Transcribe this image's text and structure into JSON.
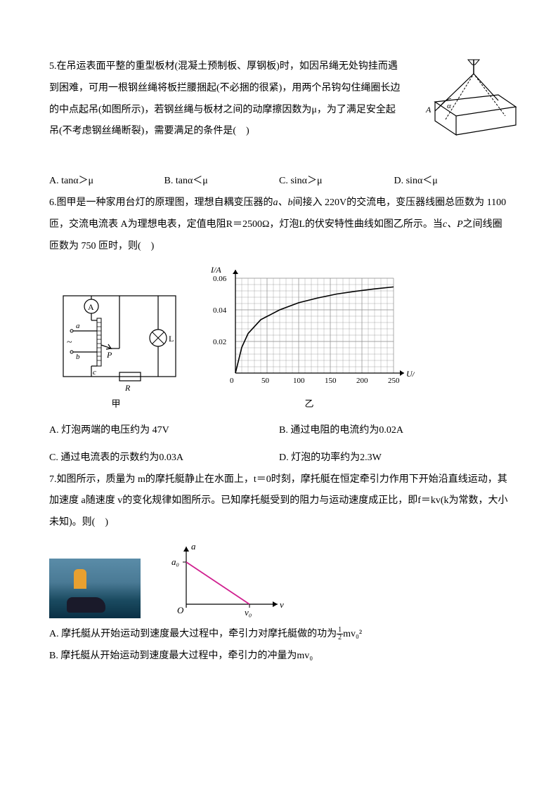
{
  "q5": {
    "text": "5.在吊运表面平整的重型板材(混凝土预制板、厚钢板)时，如因吊绳无处钩挂而遇到困难，可用一根钢丝绳将板拦腰捆起(不必捆的很紧)，用两个吊钩勾住绳圈长边的中点起吊(如图所示)，若钢丝绳与板材之间的动摩擦因数为μ，为了满足安全起吊(不考虑钢丝绳断裂)，需要满足的条件是(　)",
    "options": {
      "a": "A. tanα＞μ",
      "b": "B. tanα＜μ",
      "c": "C. sinα＞μ",
      "d": "D. sinα＜μ"
    },
    "diagram": {
      "label_A": "A",
      "label_alpha": "α"
    }
  },
  "q6": {
    "text_before": "6.图甲是一种家用台灯的原理图，理想自耦变压器的",
    "text_ab": "a、b",
    "text_mid1": "间接入 220V的交流电，变压器线圈总匝数为 1100 匝，交流电流表 A为理想电表，定值电阻R＝2500Ω，灯泡L的伏安特性曲线如图乙所示。当",
    "text_cp": "c、P",
    "text_end": "之间线圈匝数为 750 匝时，则(　)",
    "options": {
      "a": "A. 灯泡两端的电压约为 47V",
      "b": "B. 通过电阻的电流约为0.02A",
      "c": "C. 通过电流表的示数约为0.03A",
      "d": "D. 灯泡的功率约为2.3W"
    },
    "circuit": {
      "a": "a",
      "b": "b",
      "P": "P",
      "c": "c",
      "R": "R",
      "L": "L",
      "ammeter": "A",
      "tilde": "~",
      "caption": "甲"
    },
    "chart": {
      "caption": "乙",
      "y_label": "I/A",
      "x_label": "U/V",
      "y_ticks": [
        "0.02",
        "0.04",
        "0.06"
      ],
      "x_ticks": [
        "0",
        "50",
        "100",
        "150",
        "200",
        "250"
      ],
      "curve_points": [
        [
          0,
          0
        ],
        [
          10,
          65
        ],
        [
          20,
          100
        ],
        [
          40,
          135
        ],
        [
          70,
          160
        ],
        [
          100,
          178
        ],
        [
          130,
          190
        ],
        [
          160,
          200
        ],
        [
          190,
          207
        ],
        [
          220,
          213
        ],
        [
          250,
          218
        ]
      ],
      "x_range": [
        0,
        250
      ],
      "y_range": [
        0,
        0.06
      ],
      "y_scale": 4000,
      "grid_color": "#888888",
      "axis_color": "#000000"
    }
  },
  "q7": {
    "text": "7.如图所示，质量为 m的摩托艇静止在水面上，t＝0时刻，摩托艇在恒定牵引力作用下开始沿直线运动，其加速度 a随速度 v的变化规律如图所示。已知摩托艇受到的阻力与运动速度成正比，即f＝kv(k为常数，大小未知)。则(　)",
    "graph": {
      "y_label": "a",
      "x_label": "v",
      "a0": "a₀",
      "v0": "v₀",
      "origin": "O",
      "line_color": "#d02090"
    },
    "options": {
      "a_pre": "A. 摩托艇从开始运动到速度最大过程中，牵引力对摩托艇做的功为",
      "a_frac_num": "1",
      "a_frac_den": "2",
      "a_post": "mv₀²",
      "b": "B. 摩托艇从开始运动到速度最大过程中，牵引力的冲量为mv₀"
    }
  }
}
